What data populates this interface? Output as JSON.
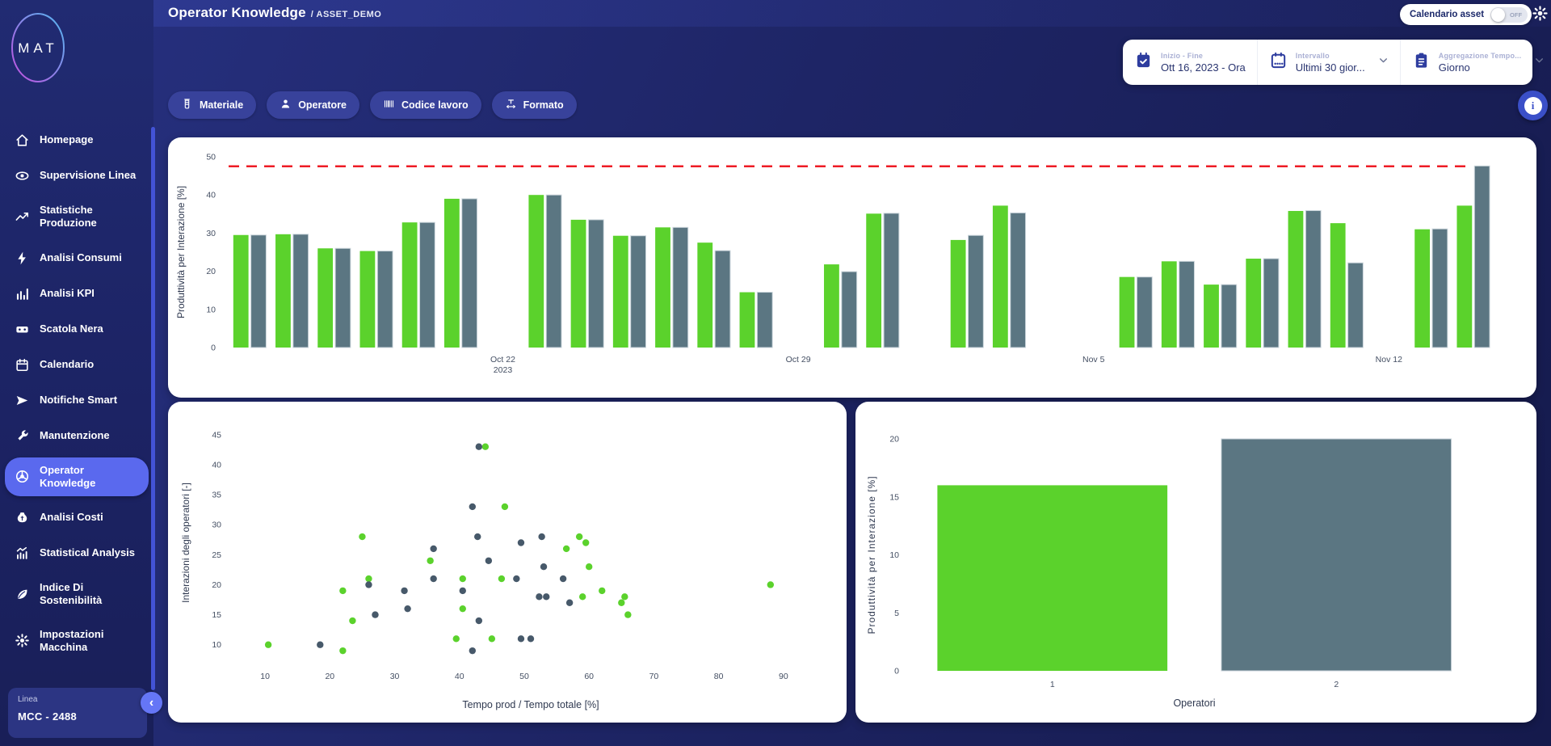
{
  "app": {
    "logo_text": "MAT",
    "title": "Operator Knowledge",
    "separator": "/",
    "subtitle": "ASSET_DEMO"
  },
  "topbar": {
    "calendar_toggle": {
      "label": "Calendario asset",
      "state": "OFF"
    },
    "gear_icon": "gear-icon"
  },
  "controls": {
    "date_range": {
      "icon": "calendar-check-icon",
      "label": "Inizio - Fine",
      "value": "Ott 16, 2023 - Ora"
    },
    "interval": {
      "icon": "calendar-icon",
      "label": "Intervallo",
      "value": "Ultimi 30 gior..."
    },
    "aggregation": {
      "icon": "clipboard-icon",
      "label": "Aggregazione Tempo...",
      "value": "Giorno"
    }
  },
  "filters": [
    {
      "icon": "material-icon",
      "label": "Materiale"
    },
    {
      "icon": "person-icon",
      "label": "Operatore"
    },
    {
      "icon": "barcode-icon",
      "label": "Codice lavoro"
    },
    {
      "icon": "format-icon",
      "label": "Formato"
    }
  ],
  "info_button": {
    "icon": "info-icon",
    "glyph": "i"
  },
  "sidebar": {
    "items": [
      {
        "icon": "home-icon",
        "label": "Homepage",
        "active": false
      },
      {
        "icon": "eye-icon",
        "label": "Supervisione Linea",
        "active": false
      },
      {
        "icon": "trend-icon",
        "label": "Statistiche Produzione",
        "active": false
      },
      {
        "icon": "bolt-icon",
        "label": "Analisi Consumi",
        "active": false
      },
      {
        "icon": "bar-chart-icon",
        "label": "Analisi KPI",
        "active": false
      },
      {
        "icon": "black-box-icon",
        "label": "Scatola Nera",
        "active": false
      },
      {
        "icon": "calendar-icon",
        "label": "Calendario",
        "active": false
      },
      {
        "icon": "send-icon",
        "label": "Notifiche Smart",
        "active": false
      },
      {
        "icon": "wrench-icon",
        "label": "Manutenzione",
        "active": false
      },
      {
        "icon": "operator-wheel-icon",
        "label": "Operator Knowledge",
        "active": true
      },
      {
        "icon": "money-bag-icon",
        "label": "Analisi Costi",
        "active": false
      },
      {
        "icon": "stats-icon",
        "label": "Statistical Analysis",
        "active": false
      },
      {
        "icon": "leaf-icon",
        "label": "Indice Di Sostenibilità",
        "active": false
      },
      {
        "icon": "machine-gear-icon",
        "label": "Impostazioni Macchina",
        "active": false
      }
    ]
  },
  "machine_card": {
    "label": "Linea",
    "value": "MCC - 2488"
  },
  "collapse_button": {
    "icon": "chevron-left-icon",
    "glyph": "‹"
  },
  "colors": {
    "green": "#5bd22c",
    "slate_bar": "#5b7682",
    "slate_dot": "#47596a",
    "reference_red": "#ee1c25",
    "axis_text": "#444f63",
    "accent": "#5a69ee"
  },
  "chart_data": [
    {
      "type": "bar",
      "name": "productivity-per-interaction-daily",
      "ylabel": "Produttività per Interazione [%]",
      "ylim": [
        0,
        50
      ],
      "yticks": [
        0,
        10,
        20,
        30,
        40,
        50
      ],
      "reference_line": 47.5,
      "grid": false,
      "legend": "none",
      "axis_days": 30.5,
      "xticks": [
        {
          "day": 6,
          "label": "Oct 22",
          "sublabel": "2023"
        },
        {
          "day": 13,
          "label": "Oct 29"
        },
        {
          "day": 20,
          "label": "Nov 5"
        },
        {
          "day": 27,
          "label": "Nov 12"
        }
      ],
      "series_names": [
        "green",
        "slate"
      ],
      "pairs": [
        {
          "day": 0,
          "green": 29.5,
          "slate": 29.5
        },
        {
          "day": 1,
          "green": 29.7,
          "slate": 29.7
        },
        {
          "day": 2,
          "green": 26.0,
          "slate": 26.0
        },
        {
          "day": 3,
          "green": 25.3,
          "slate": 25.3
        },
        {
          "day": 4,
          "green": 32.8,
          "slate": 32.8
        },
        {
          "day": 5,
          "green": 39.0,
          "slate": 39.0
        },
        {
          "day": 7,
          "green": 40.0,
          "slate": 40.0
        },
        {
          "day": 8,
          "green": 33.5,
          "slate": 33.5
        },
        {
          "day": 9,
          "green": 29.3,
          "slate": 29.3
        },
        {
          "day": 10,
          "green": 31.5,
          "slate": 31.5
        },
        {
          "day": 11,
          "green": 27.5,
          "slate": 25.4
        },
        {
          "day": 12,
          "green": 14.5,
          "slate": 14.5
        },
        {
          "day": 14,
          "green": 21.8,
          "slate": 19.9
        },
        {
          "day": 15,
          "green": 35.1,
          "slate": 35.2
        },
        {
          "day": 17,
          "green": 28.2,
          "slate": 29.4
        },
        {
          "day": 18,
          "green": 37.2,
          "slate": 35.3
        },
        {
          "day": 21,
          "green": 18.5,
          "slate": 18.5
        },
        {
          "day": 22,
          "green": 22.6,
          "slate": 22.6
        },
        {
          "day": 23,
          "green": 16.5,
          "slate": 16.5
        },
        {
          "day": 24,
          "green": 23.3,
          "slate": 23.3
        },
        {
          "day": 25,
          "green": 35.8,
          "slate": 35.9
        },
        {
          "day": 26,
          "green": 32.6,
          "slate": 22.2
        },
        {
          "day": 28,
          "green": 31.0,
          "slate": 31.1
        },
        {
          "day": 29,
          "green": 37.2,
          "slate": 47.6
        }
      ]
    },
    {
      "type": "scatter",
      "name": "operator-interactions-vs-prod-time",
      "xlabel": "Tempo prod / Tempo totale [%]",
      "ylabel": "Interazioni degli operatori [-]",
      "xlim": [
        5,
        97
      ],
      "ylim": [
        7,
        47
      ],
      "xticks": [
        10,
        20,
        30,
        40,
        50,
        60,
        70,
        80,
        90
      ],
      "yticks": [
        10,
        15,
        20,
        25,
        30,
        35,
        40,
        45
      ],
      "series": [
        {
          "name": "green",
          "points": [
            [
              10.5,
              10
            ],
            [
              22,
              9
            ],
            [
              22,
              19
            ],
            [
              23.5,
              14
            ],
            [
              25,
              28
            ],
            [
              26,
              21
            ],
            [
              35.5,
              24
            ],
            [
              39.5,
              11
            ],
            [
              40.5,
              16
            ],
            [
              40.5,
              21
            ],
            [
              44,
              43
            ],
            [
              45,
              11
            ],
            [
              46.5,
              21
            ],
            [
              47,
              33
            ],
            [
              56.5,
              26
            ],
            [
              58.5,
              28
            ],
            [
              59.5,
              27
            ],
            [
              59,
              18
            ],
            [
              60,
              23
            ],
            [
              62,
              19
            ],
            [
              65,
              17
            ],
            [
              65.5,
              18
            ],
            [
              66,
              15
            ],
            [
              88,
              20
            ]
          ]
        },
        {
          "name": "slate",
          "points": [
            [
              18.5,
              10
            ],
            [
              26,
              20
            ],
            [
              27,
              15
            ],
            [
              31.5,
              19
            ],
            [
              32,
              16
            ],
            [
              36,
              21
            ],
            [
              36,
              26
            ],
            [
              40.5,
              19
            ],
            [
              42,
              9
            ],
            [
              42,
              33
            ],
            [
              42.8,
              28
            ],
            [
              43,
              43
            ],
            [
              43,
              14
            ],
            [
              44.5,
              24
            ],
            [
              48.8,
              21
            ],
            [
              49.5,
              27
            ],
            [
              49.5,
              11
            ],
            [
              51,
              11
            ],
            [
              52.3,
              18
            ],
            [
              52.7,
              28
            ],
            [
              53,
              23
            ],
            [
              53.4,
              18
            ],
            [
              56,
              21
            ],
            [
              57,
              17
            ]
          ]
        }
      ]
    },
    {
      "type": "bar",
      "name": "productivity-per-operator",
      "categories": [
        "1",
        "2"
      ],
      "values": [
        16,
        20
      ],
      "bar_colors": [
        "green",
        "slate"
      ],
      "xlabel": "Operatori",
      "ylabel": "Produttività per Interazione [%]",
      "ylim": [
        0,
        20
      ],
      "yticks": [
        0,
        5,
        10,
        15,
        20
      ]
    }
  ]
}
